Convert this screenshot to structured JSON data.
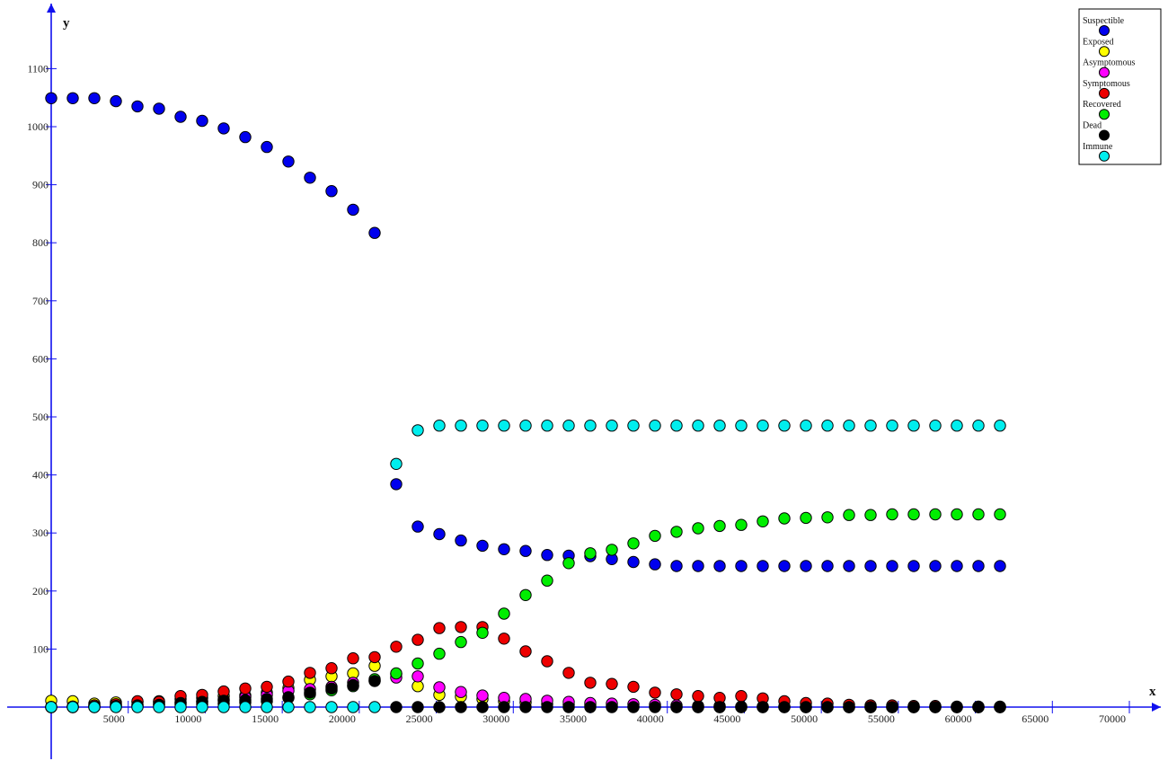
{
  "chart_data": {
    "type": "scatter",
    "xlabel": "x",
    "ylabel": "y",
    "xlim": [
      0,
      70000
    ],
    "ylim": [
      -75,
      1150
    ],
    "x_ticks": [
      5000,
      10000,
      15000,
      20000,
      25000,
      30000,
      35000,
      40000,
      45000,
      50000,
      55000,
      60000,
      65000,
      70000
    ],
    "y_ticks": [
      100,
      200,
      300,
      400,
      500,
      600,
      700,
      800,
      900,
      1000,
      1100
    ],
    "grid": false,
    "legend_position": "top-right",
    "x": [
      0,
      1400,
      2800,
      4200,
      5600,
      7000,
      8400,
      9800,
      11200,
      12600,
      14000,
      15400,
      16800,
      18200,
      19600,
      21000,
      22400,
      23800,
      25200,
      26600,
      28000,
      29400,
      30800,
      32200,
      33600,
      35000,
      36400,
      37800,
      39200,
      40600,
      42000,
      43400,
      44800,
      46200,
      47600,
      49000,
      50400,
      51800,
      53200,
      54600,
      56000,
      57400,
      58800,
      60200,
      61600
    ],
    "series": [
      {
        "name": "Suspectible",
        "color": "#0000ee",
        "values": [
          1049,
          1049,
          1049,
          1044,
          1035,
          1031,
          1017,
          1010,
          997,
          982,
          965,
          940,
          912,
          889,
          857,
          817,
          384,
          311,
          298,
          287,
          278,
          272,
          269,
          262,
          261,
          260,
          255,
          250,
          246,
          243,
          243,
          243,
          243,
          243,
          243,
          243,
          243,
          243,
          243,
          243,
          243,
          243,
          243,
          243,
          243
        ]
      },
      {
        "name": "Exposed",
        "color": "#ffff00",
        "values": [
          11,
          10,
          6,
          8,
          9,
          10,
          14,
          16,
          19,
          20,
          25,
          33,
          47,
          53,
          58,
          71,
          57,
          36,
          21,
          18,
          14,
          10,
          8,
          5,
          4,
          3,
          2,
          1,
          1,
          0,
          0,
          0,
          0,
          0,
          0,
          0,
          0,
          0,
          0,
          0,
          0,
          0,
          0,
          0,
          0
        ]
      },
      {
        "name": "Asymptomous",
        "color": "#ff00ff",
        "values": [
          0,
          1,
          2,
          3,
          4,
          6,
          8,
          10,
          13,
          17,
          21,
          28,
          31,
          35,
          42,
          45,
          51,
          53,
          34,
          26,
          20,
          16,
          14,
          11,
          9,
          7,
          6,
          5,
          4,
          3,
          2,
          2,
          1,
          1,
          1,
          0,
          0,
          0,
          0,
          0,
          0,
          0,
          0,
          0,
          0
        ]
      },
      {
        "name": "Symptomous",
        "color": "#ee0000",
        "values": [
          0,
          1,
          3,
          5,
          10,
          9,
          19,
          21,
          27,
          32,
          35,
          44,
          59,
          67,
          84,
          86,
          104,
          116,
          136,
          138,
          138,
          118,
          96,
          79,
          59,
          42,
          40,
          35,
          25,
          22,
          19,
          16,
          19,
          15,
          10,
          7,
          6,
          4,
          3,
          3,
          2,
          2,
          1,
          1,
          1
        ]
      },
      {
        "name": "Recovered",
        "color": "#00ee00",
        "values": [
          0,
          0,
          1,
          1,
          2,
          3,
          4,
          5,
          6,
          8,
          10,
          16,
          22,
          29,
          36,
          48,
          58,
          75,
          92,
          112,
          128,
          161,
          193,
          218,
          248,
          265,
          271,
          282,
          295,
          302,
          308,
          312,
          314,
          320,
          325,
          326,
          327,
          331,
          331,
          332,
          332,
          332,
          332,
          332,
          332
        ]
      },
      {
        "name": "Dead",
        "color": "#000000",
        "values": [
          0,
          0,
          0,
          2,
          3,
          4,
          7,
          9,
          11,
          12,
          14,
          17,
          25,
          32,
          38,
          45,
          0,
          0,
          0,
          0,
          0,
          0,
          0,
          0,
          0,
          0,
          0,
          0,
          0,
          0,
          0,
          0,
          0,
          0,
          0,
          0,
          0,
          0,
          0,
          0,
          0,
          0,
          0,
          0,
          0
        ]
      },
      {
        "name": "Immune",
        "color": "#00eeee",
        "values": [
          0,
          0,
          0,
          0,
          0,
          0,
          0,
          0,
          0,
          0,
          0,
          0,
          0,
          0,
          0,
          0,
          419,
          477,
          485,
          485,
          485,
          485,
          485,
          485,
          485,
          485,
          485,
          485,
          485,
          485,
          485,
          485,
          485,
          485,
          485,
          485,
          485,
          485,
          485,
          485,
          485,
          485,
          485,
          485,
          485
        ]
      }
    ]
  }
}
